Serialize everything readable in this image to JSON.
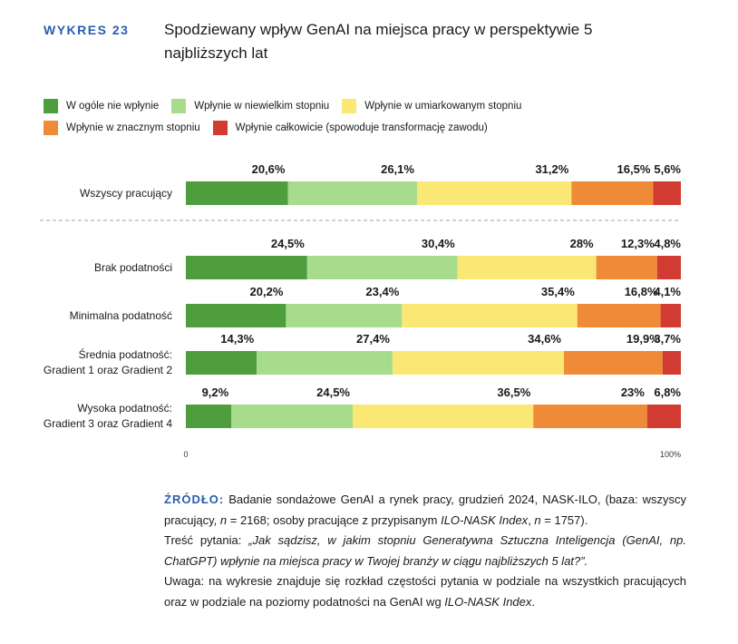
{
  "figure": {
    "tag": "WYKRES 23",
    "title": "Spodziewany wpływ GenAI na miejsca pracy w perspektywie 5 najbliższych lat"
  },
  "chart_data": {
    "type": "bar",
    "orientation": "horizontal",
    "stacked": true,
    "categories": [
      [
        "Wszyscy pracujący"
      ],
      [
        "Brak podatności"
      ],
      [
        "Minimalna podatność"
      ],
      [
        "Średnia podatność:",
        "Gradient 1 oraz Gradient 2"
      ],
      [
        "Wysoka podatność:",
        "Gradient 3 oraz Gradient 4"
      ]
    ],
    "series": [
      {
        "name": "W ogóle nie wpłynie",
        "color": "#4f9e3d",
        "values": [
          20.6,
          24.5,
          20.2,
          14.3,
          9.2
        ],
        "labels": [
          "20,6%",
          "24,5%",
          "20,2%",
          "14,3%",
          "9,2%"
        ]
      },
      {
        "name": "Wpłynie w niewielkim stopniu",
        "color": "#a8dc8d",
        "values": [
          26.1,
          30.4,
          23.4,
          27.4,
          24.5
        ],
        "labels": [
          "26,1%",
          "30,4%",
          "23,4%",
          "27,4%",
          "24,5%"
        ]
      },
      {
        "name": "Wpłynie w umiarkowanym stopniu",
        "color": "#fbe774",
        "values": [
          31.2,
          28,
          35.4,
          34.6,
          36.5
        ],
        "labels": [
          "31,2%",
          "28%",
          "35,4%",
          "34,6%",
          "36,5%"
        ]
      },
      {
        "name": "Wpłynie w znacznym stopniu",
        "color": "#ef8a38",
        "values": [
          16.5,
          12.3,
          16.8,
          19.9,
          23
        ],
        "labels": [
          "16,5%",
          "12,3%",
          "16,8%",
          "19,9%",
          "23%"
        ]
      },
      {
        "name": "Wpłynie całkowicie (spowoduje transformację zawodu)",
        "color": "#d23b32",
        "values": [
          5.6,
          4.8,
          4.1,
          3.7,
          6.8
        ],
        "labels": [
          "5,6%",
          "4,8%",
          "4,1%",
          "3,7%",
          "6,8%"
        ]
      }
    ],
    "xlim": [
      0,
      100
    ],
    "x_ticks": [
      "0",
      "100%"
    ],
    "separator_after_first": true,
    "legend_position": "top"
  },
  "legend_rows": [
    [
      0,
      1,
      2
    ],
    [
      3,
      4
    ]
  ],
  "source": {
    "label": "ŹRÓDŁO:",
    "text1": " Badanie sondażowe GenAI a rynek pracy, grudzień 2024, NASK-ILO, (baza: wszyscy pracujący, ",
    "n1_var": "n",
    "n1_val": " = 2168; osoby pracujące z przypisanym ",
    "index1": "ILO-NASK Index",
    "n2_sep": ", ",
    "n2_var": "n",
    "n2_val": " = 1757).",
    "question_label": "Treść pytania: ",
    "question": "„Jak sądzisz, w jakim stopniu Generatywna Sztuczna Inteligencja (GenAI, np. ChatGPT) wpłynie na miejsca pracy w Twojej branży w ciągu najbliższych 5 lat?”.",
    "note": "Uwaga: na wykresie znajduje się rozkład częstości pytania w podziale na wszystkich pracujących oraz w podziale na poziomy podatności na GenAI wg ",
    "index2": "ILO-NASK Index",
    "note_end": "."
  }
}
